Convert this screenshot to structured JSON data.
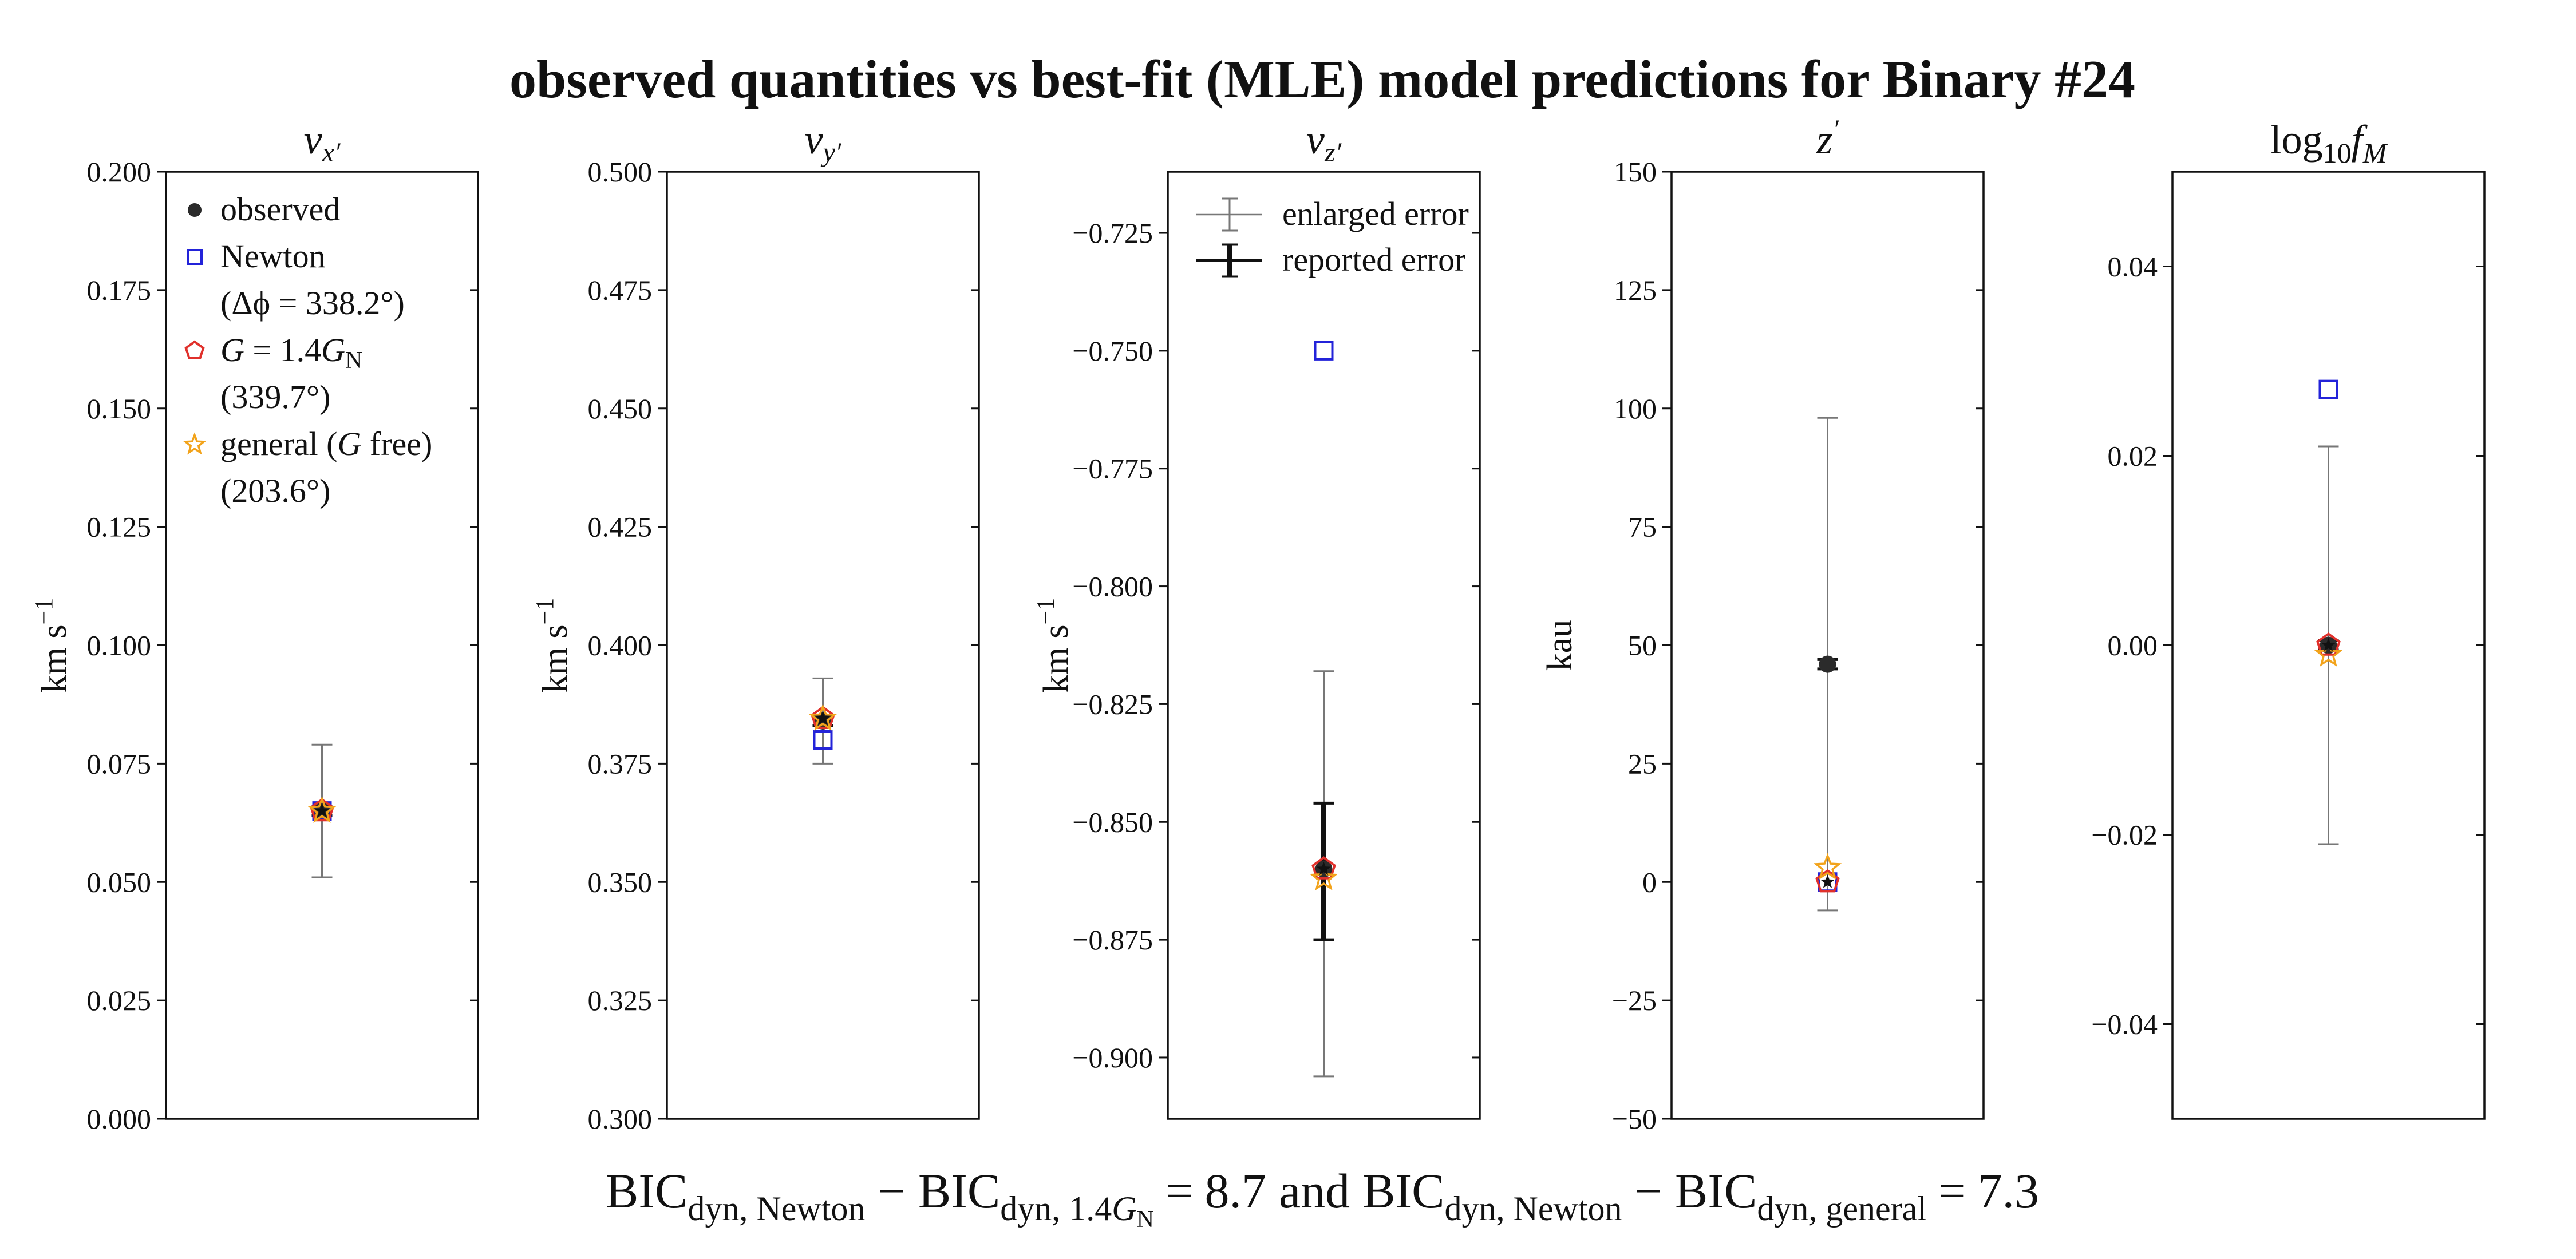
{
  "suptitle": "observed quantities vs best-fit (MLE) model predictions for Binary #24",
  "bottom_text": {
    "bic": "BIC",
    "dyn_newton": "dyn, Newton",
    "minus": "−",
    "dyn_14g": "dyn, 1.4",
    "g_sym": "G",
    "n_sub": "N",
    "equals": "=",
    "value_1": "8.7",
    "and": "and",
    "dyn_general": "dyn, general",
    "value_2": "7.3"
  },
  "legend_models": [
    {
      "marker": "circle",
      "label": "observed",
      "sublabel": ""
    },
    {
      "marker": "square",
      "label": "Newton",
      "sublabel": "(Δϕ = 338.2°)"
    },
    {
      "marker": "pentagon",
      "label": "G = 1.4G",
      "label_sub": "N",
      "sublabel": "(339.7°)"
    },
    {
      "marker": "star",
      "label": "general (G free)",
      "sublabel": "(203.6°)"
    }
  ],
  "legend_errors": [
    {
      "style": "enlarged",
      "label": "enlarged error"
    },
    {
      "style": "reported",
      "label": "reported error"
    }
  ],
  "colors": {
    "observed": "#2b2b2b",
    "newton": "#2323d9",
    "g14": "#e0302b",
    "general": "#f2a31b",
    "enlarged_err": "#777777",
    "reported_err": "#111111"
  },
  "chart_data": [
    {
      "type": "scatter",
      "title_base": "v",
      "title_sub": "x′",
      "ylabel": "km s",
      "ylabel_sup": "−1",
      "ylim": [
        0.0,
        0.2
      ],
      "yticks": [
        0.0,
        0.025,
        0.05,
        0.075,
        0.1,
        0.125,
        0.15,
        0.175,
        0.2
      ],
      "ytick_labels": [
        "0.000",
        "0.025",
        "0.050",
        "0.075",
        "0.100",
        "0.125",
        "0.150",
        "0.175",
        "0.200"
      ],
      "observed": 0.065,
      "enlarged_error": [
        0.051,
        0.079
      ],
      "reported_error": [
        0.064,
        0.066
      ],
      "newton": 0.065,
      "g14": 0.065,
      "general": 0.065,
      "show_model_legend": true,
      "show_error_legend": false
    },
    {
      "type": "scatter",
      "title_base": "v",
      "title_sub": "y′",
      "ylabel": "km s",
      "ylabel_sup": "−1",
      "ylim": [
        0.3,
        0.5
      ],
      "yticks": [
        0.3,
        0.325,
        0.35,
        0.375,
        0.4,
        0.425,
        0.45,
        0.475,
        0.5
      ],
      "ytick_labels": [
        "0.300",
        "0.325",
        "0.350",
        "0.375",
        "0.400",
        "0.425",
        "0.450",
        "0.475",
        "0.500"
      ],
      "observed": 0.384,
      "enlarged_error": [
        0.375,
        0.393
      ],
      "reported_error": [
        0.383,
        0.385
      ],
      "newton": 0.38,
      "g14": 0.3845,
      "general": 0.3845,
      "show_model_legend": false,
      "show_error_legend": false
    },
    {
      "type": "scatter",
      "title_base": "v",
      "title_sub": "z′",
      "ylabel": "km s",
      "ylabel_sup": "−1",
      "ylim": [
        -0.913,
        -0.712
      ],
      "yticks": [
        -0.9,
        -0.875,
        -0.85,
        -0.825,
        -0.8,
        -0.775,
        -0.75,
        -0.725
      ],
      "ytick_labels": [
        "−0.900",
        "−0.875",
        "−0.850",
        "−0.825",
        "−0.800",
        "−0.775",
        "−0.750",
        "−0.725"
      ],
      "observed": -0.86,
      "enlarged_error": [
        -0.904,
        -0.818
      ],
      "reported_error": [
        -0.875,
        -0.846
      ],
      "newton": -0.75,
      "g14": -0.86,
      "general": -0.862,
      "show_model_legend": false,
      "show_error_legend": true
    },
    {
      "type": "scatter",
      "title_base": "z",
      "title_sub": "′",
      "ylabel": "kau",
      "ylabel_sup": "",
      "ylim": [
        -50,
        150
      ],
      "yticks": [
        -50,
        -25,
        0,
        25,
        50,
        75,
        100,
        125,
        150
      ],
      "ytick_labels": [
        "−50",
        "−25",
        "0",
        "25",
        "50",
        "75",
        "100",
        "125",
        "150"
      ],
      "observed": 46,
      "enlarged_error": [
        -6,
        98
      ],
      "reported_error": [
        45,
        47
      ],
      "newton": 0,
      "g14": 0,
      "general": 3,
      "show_model_legend": false,
      "show_error_legend": false
    },
    {
      "type": "scatter",
      "title_base": "log",
      "title_sub": "10",
      "title_tail": "f",
      "title_tail_sub": "M",
      "ylabel": "",
      "ylabel_sup": "",
      "ylim": [
        -0.05,
        0.05
      ],
      "yticks": [
        -0.04,
        -0.02,
        0.0,
        0.02,
        0.04
      ],
      "ytick_labels": [
        "−0.04",
        "−0.02",
        "0.00",
        "0.02",
        "0.04"
      ],
      "observed": 0.0,
      "enlarged_error": [
        -0.021,
        0.021
      ],
      "reported_error": [
        -0.0005,
        0.0005
      ],
      "newton": 0.027,
      "g14": 0.0,
      "general": -0.001,
      "show_model_legend": false,
      "show_error_legend": false
    }
  ]
}
